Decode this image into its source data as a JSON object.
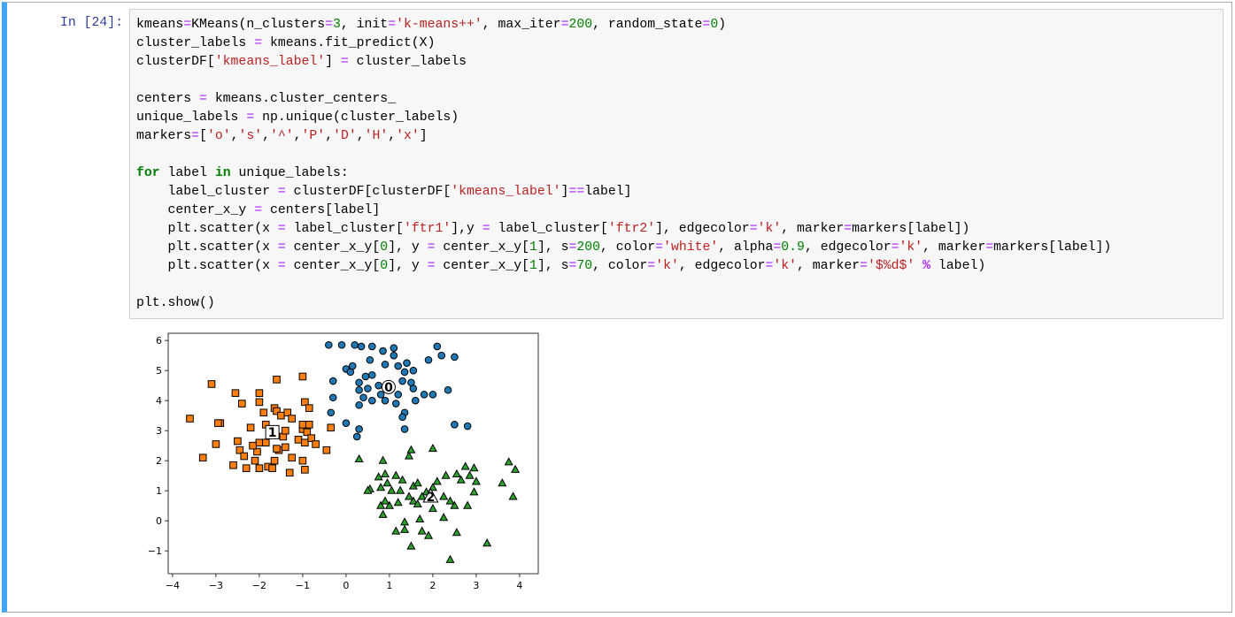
{
  "cell": {
    "prompt": "In [24]:",
    "palette": {
      "op": {
        "color": "#aa22ff",
        "bold": false
      },
      "opw": {
        "color": "#aa22ff",
        "bold": true
      },
      "num": {
        "color": "#008000",
        "bold": false
      },
      "str": {
        "color": "#ba2121",
        "bold": false
      },
      "kw": {
        "color": "#008000",
        "bold": true
      }
    },
    "code_blocks": [
      [
        [
          "kmeans",
          [
            "=",
            "op"
          ],
          "KMeans(n_clusters",
          [
            "=",
            "op"
          ],
          [
            "3",
            "num"
          ],
          ", init",
          [
            "=",
            "op"
          ],
          [
            "'k-means++'",
            "str"
          ],
          ", max_iter",
          [
            "=",
            "op"
          ],
          [
            "200",
            "num"
          ],
          ", random_state",
          [
            "=",
            "op"
          ],
          [
            "0",
            "num"
          ],
          ")"
        ],
        [
          "cluster_labels ",
          [
            "=",
            "op"
          ],
          " kmeans.fit_predict(X)"
        ],
        [
          "clusterDF[",
          [
            "'kmeans_label'",
            "str"
          ],
          "] ",
          [
            "=",
            "op"
          ],
          " cluster_labels"
        ]
      ],
      [
        [
          "centers ",
          [
            "=",
            "op"
          ],
          " kmeans.cluster_centers_"
        ],
        [
          "unique_labels ",
          [
            "=",
            "op"
          ],
          " np.unique(cluster_labels)"
        ],
        [
          "markers",
          [
            "=",
            "op"
          ],
          "[",
          [
            "'o'",
            "str"
          ],
          ",",
          [
            "'s'",
            "str"
          ],
          ",",
          [
            "'^'",
            "str"
          ],
          ",",
          [
            "'P'",
            "str"
          ],
          ",",
          [
            "'D'",
            "str"
          ],
          ",",
          [
            "'H'",
            "str"
          ],
          ",",
          [
            "'x'",
            "str"
          ],
          "]"
        ]
      ],
      [
        [
          [
            "for",
            "kw"
          ],
          " label ",
          [
            "in",
            "kw"
          ],
          " unique_labels:"
        ],
        [
          "    label_cluster ",
          [
            "=",
            "op"
          ],
          " clusterDF[clusterDF[",
          [
            "'kmeans_label'",
            "str"
          ],
          "]",
          [
            "==",
            "op"
          ],
          "label]"
        ],
        [
          "    center_x_y ",
          [
            "=",
            "op"
          ],
          " centers[label]"
        ],
        [
          "    plt.scatter(x ",
          [
            "=",
            "op"
          ],
          " label_cluster[",
          [
            "'ftr1'",
            "str"
          ],
          "],y ",
          [
            "=",
            "op"
          ],
          " label_cluster[",
          [
            "'ftr2'",
            "str"
          ],
          "], edgecolor",
          [
            "=",
            "op"
          ],
          [
            "'k'",
            "str"
          ],
          ", marker",
          [
            "=",
            "op"
          ],
          "markers[label])"
        ],
        [
          "    plt.scatter(x ",
          [
            "=",
            "op"
          ],
          " center_x_y[",
          [
            "0",
            "num"
          ],
          "], y ",
          [
            "=",
            "op"
          ],
          " center_x_y[",
          [
            "1",
            "num"
          ],
          "], s",
          [
            "=",
            "op"
          ],
          [
            "200",
            "num"
          ],
          ", color",
          [
            "=",
            "op"
          ],
          [
            "'white'",
            "str"
          ],
          ", alpha",
          [
            "=",
            "op"
          ],
          [
            "0.9",
            "num"
          ],
          ", edgecolor",
          [
            "=",
            "op"
          ],
          [
            "'k'",
            "str"
          ],
          ", marker",
          [
            "=",
            "op"
          ],
          "markers[label])"
        ],
        [
          "    plt.scatter(x ",
          [
            "=",
            "op"
          ],
          " center_x_y[",
          [
            "0",
            "num"
          ],
          "], y ",
          [
            "=",
            "op"
          ],
          " center_x_y[",
          [
            "1",
            "num"
          ],
          "], s",
          [
            "=",
            "op"
          ],
          [
            "70",
            "num"
          ],
          ", color",
          [
            "=",
            "op"
          ],
          [
            "'k'",
            "str"
          ],
          ", edgecolor",
          [
            "=",
            "op"
          ],
          [
            "'k'",
            "str"
          ],
          ", marker",
          [
            "=",
            "op"
          ],
          [
            "'$%d$'",
            "str"
          ],
          " ",
          [
            "%",
            "opw"
          ],
          " label)"
        ]
      ],
      [
        [
          "plt.show()"
        ]
      ]
    ]
  },
  "chart_data": {
    "type": "scatter",
    "xlim": [
      -4.1,
      4.43
    ],
    "ylim": [
      -1.76,
      6.24
    ],
    "xticks": [
      {
        "value": -4,
        "label": "−4"
      },
      {
        "value": -3,
        "label": "−3"
      },
      {
        "value": -2,
        "label": "−2"
      },
      {
        "value": -1,
        "label": "−1"
      },
      0,
      1,
      2,
      3,
      4
    ],
    "yticks": [
      {
        "value": -1,
        "label": "−1"
      },
      0,
      1,
      2,
      3,
      4,
      5,
      6
    ],
    "series": [
      {
        "color": "#1f77b4",
        "marker": "o",
        "x": [
          -0.4,
          -0.1,
          0.2,
          0.35,
          0.6,
          0.85,
          1.1,
          0.55,
          0.9,
          1.2,
          1.1,
          1.4,
          2.1,
          1.9,
          2.2,
          2.5,
          0.0,
          0.1,
          0.15,
          -0.3,
          0.3,
          0.45,
          0.6,
          0.3,
          0.5,
          0.75,
          1.35,
          1.55,
          1.3,
          1.5,
          1.55,
          1.8,
          2.0,
          2.35,
          1.2,
          0.4,
          0.6,
          -0.3,
          0.9,
          1.15,
          0.3,
          1.35,
          1.3,
          -0.35,
          0.0,
          0.3,
          0.25,
          1.35,
          2.5,
          2.8,
          1.6,
          0.8
        ],
        "y": [
          5.85,
          5.85,
          5.85,
          5.8,
          5.8,
          5.65,
          5.75,
          5.35,
          5.2,
          5.15,
          5.5,
          5.25,
          5.8,
          5.35,
          5.5,
          5.45,
          5.05,
          4.95,
          5.15,
          4.65,
          4.6,
          4.8,
          4.85,
          4.35,
          4.4,
          4.5,
          4.95,
          5.0,
          4.65,
          4.6,
          4.4,
          4.2,
          4.2,
          4.35,
          4.2,
          4.1,
          4.0,
          4.1,
          4.0,
          3.9,
          3.85,
          3.6,
          3.45,
          3.6,
          3.25,
          3.05,
          2.8,
          3.05,
          3.2,
          3.15,
          4.0,
          4.2
        ],
        "center": {
          "x": 0.98,
          "y": 4.45,
          "label": "0"
        }
      },
      {
        "color": "#ff7f0e",
        "marker": "s",
        "x": [
          -3.6,
          -3.1,
          -3.3,
          -3.0,
          -2.9,
          -2.95,
          -2.55,
          -2.4,
          -2.5,
          -2.45,
          -2.6,
          -2.3,
          -2.0,
          -2.0,
          -1.9,
          -2.0,
          -1.85,
          -2.05,
          -2.1,
          -2.0,
          -1.8,
          -1.65,
          -1.55,
          -1.4,
          -1.3,
          -1.65,
          -1.6,
          -1.5,
          -1.35,
          -1.25,
          -1.1,
          -1.0,
          -0.9,
          -1.0,
          -0.85,
          -0.95,
          -0.8,
          -1.0,
          -0.95,
          -1.45,
          -1.6,
          -1.85,
          -1.6,
          -1.0,
          -0.95,
          -0.85,
          -0.7,
          -0.45,
          -0.35,
          -2.35,
          -2.15,
          -1.7,
          -1.25,
          -2.2,
          -1.4
        ],
        "y": [
          3.4,
          4.55,
          2.1,
          2.55,
          3.25,
          3.25,
          4.25,
          3.9,
          2.65,
          2.35,
          1.85,
          1.75,
          4.25,
          3.95,
          3.6,
          2.6,
          2.6,
          2.3,
          2.0,
          1.75,
          1.8,
          2.0,
          2.35,
          2.45,
          1.6,
          3.75,
          3.65,
          3.5,
          3.6,
          3.4,
          2.7,
          3.05,
          2.95,
          3.2,
          3.2,
          2.6,
          2.75,
          2.0,
          1.7,
          2.8,
          2.4,
          3.2,
          4.7,
          4.8,
          3.95,
          3.75,
          2.55,
          2.35,
          3.1,
          2.15,
          2.5,
          1.75,
          2.1,
          3.1,
          3.0
        ],
        "center": {
          "x": -1.7,
          "y": 2.95,
          "label": "1"
        }
      },
      {
        "color": "#2ca02c",
        "marker": "^",
        "x": [
          0.3,
          0.85,
          1.45,
          1.5,
          2.0,
          0.75,
          0.9,
          1.15,
          0.8,
          0.55,
          0.95,
          0.5,
          1.05,
          1.25,
          1.55,
          1.65,
          2.0,
          2.3,
          2.55,
          2.65,
          2.85,
          2.95,
          2.75,
          3.0,
          3.6,
          3.75,
          3.9,
          3.85,
          2.95,
          2.8,
          2.5,
          2.4,
          2.25,
          1.85,
          1.75,
          1.55,
          1.45,
          1.2,
          1.0,
          0.8,
          0.9,
          1.65,
          2.0,
          2.25,
          1.7,
          1.35,
          1.15,
          1.35,
          1.75,
          1.9,
          2.55,
          1.5,
          2.4,
          3.25,
          0.85,
          2.1,
          1.3
        ],
        "y": [
          2.05,
          2.0,
          2.15,
          2.35,
          2.4,
          1.45,
          1.55,
          1.5,
          1.1,
          1.05,
          1.25,
          1.0,
          1.0,
          1.0,
          1.15,
          1.25,
          1.1,
          1.5,
          1.55,
          1.35,
          1.5,
          1.75,
          1.8,
          1.3,
          1.25,
          1.95,
          1.7,
          0.8,
          0.95,
          0.5,
          0.5,
          0.65,
          0.8,
          0.95,
          0.8,
          0.65,
          0.8,
          0.6,
          0.5,
          0.5,
          0.65,
          0.55,
          0.4,
          0.1,
          0.05,
          -0.05,
          -0.35,
          -0.3,
          -0.35,
          -0.5,
          -0.4,
          -0.85,
          -1.3,
          -0.75,
          0.2,
          1.3,
          1.35
        ],
        "center": {
          "x": 1.95,
          "y": 0.8,
          "label": "2"
        }
      }
    ]
  }
}
